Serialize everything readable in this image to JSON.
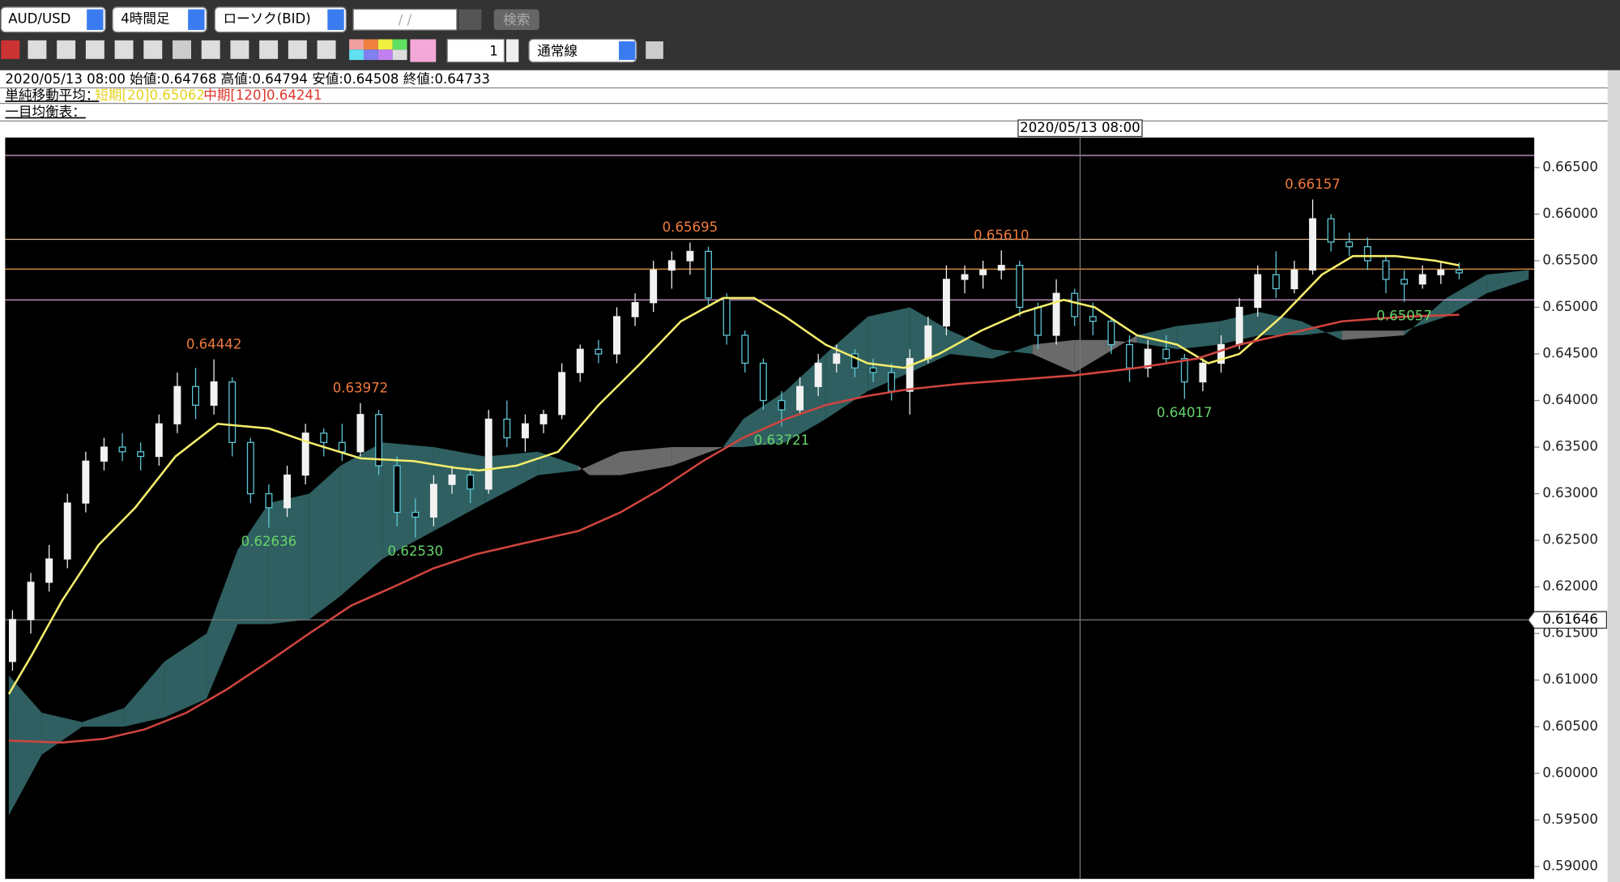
{
  "toolbar": {
    "symbol": "AUD/USD",
    "timeframe": "4時間足",
    "chart_kind": "ローソク(BID)",
    "date_input": "/ /",
    "search": "検索",
    "count": "1",
    "line_style": "通常線"
  },
  "info": {
    "ohlc_line": "2020/05/13 08:00 始値:0.64768 高値:0.64794 安値:0.64508 終値:0.64733",
    "sma_label": "単純移動平均：",
    "sma_short": "短期[20]0.65062",
    "sma_mid": "中期[120]0.64241",
    "ichimoku_label": "一目均衡表："
  },
  "chart_data": {
    "type": "candlestick",
    "xlim": [
      -0.4,
      83.1
    ],
    "ylim": [
      0.58867,
      0.66822
    ],
    "yticks": [
      {
        "value": 0.59,
        "label": "0.59000"
      },
      {
        "value": 0.595,
        "label": "0.59500"
      },
      {
        "value": 0.6,
        "label": "0.60000"
      },
      {
        "value": 0.605,
        "label": "0.60500"
      },
      {
        "value": 0.61,
        "label": "0.61000"
      },
      {
        "value": 0.615,
        "label": "0.61500"
      },
      {
        "value": 0.62,
        "label": "0.62000"
      },
      {
        "value": 0.625,
        "label": "0.62500"
      },
      {
        "value": 0.63,
        "label": "0.63000"
      },
      {
        "value": 0.635,
        "label": "0.63500"
      },
      {
        "value": 0.64,
        "label": "0.64000"
      },
      {
        "value": 0.645,
        "label": "0.64500"
      },
      {
        "value": 0.65,
        "label": "0.65000"
      },
      {
        "value": 0.655,
        "label": "0.65500"
      },
      {
        "value": 0.66,
        "label": "0.66000"
      },
      {
        "value": 0.665,
        "label": "0.66500"
      }
    ],
    "up_color": "#f2f2f2",
    "down_color": "#5ec8d8",
    "open": [
      0.612,
      0.6165,
      0.6205,
      0.623,
      0.629,
      0.6335,
      0.635,
      0.6345,
      0.634,
      0.6375,
      0.6415,
      0.6395,
      0.642,
      0.6355,
      0.63,
      0.6285,
      0.632,
      0.6365,
      0.6355,
      0.6345,
      0.6385,
      0.633,
      0.628,
      0.6275,
      0.631,
      0.632,
      0.6305,
      0.638,
      0.636,
      0.6375,
      0.6385,
      0.643,
      0.6455,
      0.645,
      0.649,
      0.6505,
      0.654,
      0.655,
      0.656,
      0.651,
      0.647,
      0.644,
      0.64,
      0.639,
      0.6415,
      0.644,
      0.645,
      0.6435,
      0.643,
      0.641,
      0.6445,
      0.648,
      0.653,
      0.6535,
      0.654,
      0.6545,
      0.65,
      0.647,
      0.6515,
      0.649,
      0.6485,
      0.646,
      0.6435,
      0.6455,
      0.6445,
      0.642,
      0.644,
      0.646,
      0.65,
      0.6535,
      0.652,
      0.654,
      0.6595,
      0.657,
      0.6565,
      0.655,
      0.653,
      0.6525,
      0.6535,
      0.654
    ],
    "high": [
      0.6175,
      0.6215,
      0.6245,
      0.63,
      0.6345,
      0.636,
      0.6365,
      0.6355,
      0.6385,
      0.643,
      0.6435,
      0.64442,
      0.6425,
      0.636,
      0.631,
      0.633,
      0.6375,
      0.637,
      0.6375,
      0.63972,
      0.639,
      0.634,
      0.6295,
      0.632,
      0.633,
      0.6325,
      0.639,
      0.64,
      0.6385,
      0.639,
      0.644,
      0.646,
      0.6465,
      0.65,
      0.6515,
      0.655,
      0.656,
      0.65695,
      0.6565,
      0.6515,
      0.6475,
      0.6445,
      0.641,
      0.6425,
      0.645,
      0.646,
      0.6455,
      0.6445,
      0.644,
      0.6455,
      0.649,
      0.6545,
      0.6545,
      0.655,
      0.6561,
      0.655,
      0.6505,
      0.653,
      0.652,
      0.6505,
      0.649,
      0.647,
      0.6465,
      0.647,
      0.645,
      0.6445,
      0.647,
      0.651,
      0.6545,
      0.656,
      0.655,
      0.66157,
      0.66,
      0.658,
      0.6575,
      0.6555,
      0.654,
      0.6545,
      0.655,
      0.6548
    ],
    "low": [
      0.611,
      0.615,
      0.6195,
      0.622,
      0.628,
      0.6325,
      0.6335,
      0.6325,
      0.633,
      0.6365,
      0.638,
      0.6385,
      0.634,
      0.629,
      0.62636,
      0.6275,
      0.631,
      0.634,
      0.6335,
      0.634,
      0.632,
      0.6265,
      0.6253,
      0.6265,
      0.63,
      0.629,
      0.63,
      0.635,
      0.6345,
      0.6365,
      0.638,
      0.642,
      0.644,
      0.644,
      0.648,
      0.6495,
      0.652,
      0.6535,
      0.65,
      0.646,
      0.643,
      0.639,
      0.63721,
      0.6385,
      0.6405,
      0.643,
      0.6425,
      0.642,
      0.64,
      0.6385,
      0.644,
      0.647,
      0.6515,
      0.652,
      0.653,
      0.649,
      0.6455,
      0.646,
      0.648,
      0.647,
      0.645,
      0.642,
      0.6425,
      0.644,
      0.64017,
      0.641,
      0.643,
      0.6455,
      0.649,
      0.651,
      0.6515,
      0.6535,
      0.656,
      0.6555,
      0.654,
      0.6515,
      0.65057,
      0.652,
      0.6525,
      0.653
    ],
    "close": [
      0.6165,
      0.6205,
      0.623,
      0.629,
      0.6335,
      0.635,
      0.6345,
      0.634,
      0.6375,
      0.6415,
      0.6395,
      0.642,
      0.6355,
      0.63,
      0.6285,
      0.632,
      0.6365,
      0.6355,
      0.6345,
      0.6385,
      0.633,
      0.628,
      0.6275,
      0.631,
      0.632,
      0.6305,
      0.638,
      0.636,
      0.6375,
      0.6385,
      0.643,
      0.6455,
      0.645,
      0.649,
      0.6505,
      0.654,
      0.655,
      0.656,
      0.651,
      0.647,
      0.644,
      0.64,
      0.639,
      0.6415,
      0.644,
      0.645,
      0.6435,
      0.643,
      0.641,
      0.6445,
      0.648,
      0.653,
      0.6535,
      0.654,
      0.6545,
      0.65,
      0.647,
      0.6515,
      0.649,
      0.6485,
      0.646,
      0.6435,
      0.6455,
      0.6445,
      0.642,
      0.644,
      0.646,
      0.65,
      0.6535,
      0.652,
      0.654,
      0.6595,
      0.657,
      0.6565,
      0.655,
      0.653,
      0.6525,
      0.6535,
      0.654,
      0.6537
    ],
    "cloud": {
      "bull_color": "#2f5f60",
      "bear_color": "#6a6a6a",
      "x": [
        -0.2,
        1.6,
        3.8,
        6.1,
        8.3,
        10.6,
        12.3,
        14,
        16.2,
        17.9,
        20.2,
        23,
        25.8,
        28.7,
        30.9,
        31.5,
        33.2,
        36,
        38.8,
        39.9,
        42.2,
        44.4,
        46.7,
        49,
        51.2,
        53.5,
        55.7,
        58,
        59.7,
        61.4,
        63.6,
        65.9,
        68.1,
        70.4,
        72.6,
        76,
        78.3,
        80.5,
        82.8
      ],
      "span_a": [
        0.6105,
        0.6065,
        0.6055,
        0.607,
        0.612,
        0.615,
        0.624,
        0.629,
        0.63,
        0.633,
        0.6355,
        0.635,
        0.634,
        0.6345,
        0.633,
        0.632,
        0.632,
        0.633,
        0.635,
        0.638,
        0.641,
        0.645,
        0.649,
        0.65,
        0.6475,
        0.6455,
        0.645,
        0.643,
        0.645,
        0.647,
        0.648,
        0.6485,
        0.6495,
        0.6485,
        0.6465,
        0.647,
        0.651,
        0.6535,
        0.654
      ],
      "span_b": [
        0.5955,
        0.602,
        0.605,
        0.605,
        0.606,
        0.608,
        0.616,
        0.616,
        0.6165,
        0.619,
        0.623,
        0.626,
        0.629,
        0.632,
        0.6325,
        0.633,
        0.6345,
        0.635,
        0.635,
        0.635,
        0.6355,
        0.638,
        0.641,
        0.643,
        0.645,
        0.6445,
        0.646,
        0.6465,
        0.6465,
        0.6462,
        0.6455,
        0.646,
        0.647,
        0.647,
        0.6475,
        0.6475,
        0.649,
        0.6515,
        0.653
      ]
    },
    "lines": [
      {
        "color": "#f4ee6c",
        "x": [
          -0.2,
          1,
          2.7,
          4.7,
          6.7,
          8.9,
          11.2,
          14,
          16.2,
          19,
          21.9,
          24.1,
          25.5,
          27.5,
          29.8,
          32,
          34.3,
          36.5,
          38.8,
          40.5,
          42.2,
          44.4,
          46.7,
          48.7,
          50.6,
          52.9,
          55.2,
          57.4,
          59.1,
          61.4,
          63.6,
          65.3,
          67,
          69.3,
          71.5,
          73.2,
          75.5,
          77.7,
          79
        ],
        "values": [
          0.6085,
          0.6125,
          0.6185,
          0.6245,
          0.6285,
          0.634,
          0.6375,
          0.637,
          0.6355,
          0.6338,
          0.6335,
          0.6328,
          0.6325,
          0.633,
          0.6345,
          0.6395,
          0.644,
          0.6485,
          0.651,
          0.651,
          0.649,
          0.646,
          0.644,
          0.6435,
          0.645,
          0.6475,
          0.6495,
          0.6508,
          0.65,
          0.647,
          0.646,
          0.644,
          0.645,
          0.649,
          0.6535,
          0.6555,
          0.6555,
          0.655,
          0.6545
        ]
      },
      {
        "color": "#d0443e",
        "x": [
          -0.2,
          2.7,
          5,
          7.2,
          9.5,
          11.7,
          14,
          16.2,
          18.5,
          20.8,
          23,
          25.3,
          27.5,
          30.9,
          33.2,
          35.4,
          37.7,
          39.9,
          42.2,
          44.4,
          46.7,
          48.9,
          51.8,
          54.6,
          58,
          61.4,
          64.7,
          67,
          70.4,
          72.6,
          76,
          79
        ],
        "values": [
          0.6035,
          0.6033,
          0.6037,
          0.6047,
          0.6065,
          0.609,
          0.612,
          0.615,
          0.618,
          0.62,
          0.622,
          0.6235,
          0.6245,
          0.626,
          0.628,
          0.6305,
          0.6335,
          0.636,
          0.638,
          0.6395,
          0.6405,
          0.6412,
          0.6418,
          0.6422,
          0.6427,
          0.6435,
          0.6445,
          0.646,
          0.6475,
          0.6485,
          0.649,
          0.6492
        ]
      }
    ],
    "hlines": [
      {
        "value": 0.6663,
        "color": "#d8a0d8"
      },
      {
        "value": 0.6573,
        "color": "#d8b890"
      },
      {
        "value": 0.6541,
        "color": "#e89a40"
      },
      {
        "value": 0.6508,
        "color": "#d8a0d8"
      }
    ],
    "crosshair": {
      "x": 58.3,
      "x_label": "2020/05/13 08:00",
      "y": {
        "value": 0.61646,
        "label": "0.61646"
      }
    },
    "annotations": [
      {
        "x": 11,
        "value": 0.64442,
        "label": "0.64442",
        "position": "above",
        "color": "#f07a3c"
      },
      {
        "x": 14,
        "value": 0.62636,
        "label": "0.62636",
        "position": "below",
        "color": "#66d36a"
      },
      {
        "x": 19,
        "value": 0.63972,
        "label": "0.63972",
        "position": "above",
        "color": "#f07a3c"
      },
      {
        "x": 22,
        "value": 0.6253,
        "label": "0.62530",
        "position": "below",
        "color": "#66d36a"
      },
      {
        "x": 37,
        "value": 0.65695,
        "label": "0.65695",
        "position": "above",
        "color": "#f07a3c"
      },
      {
        "x": 42,
        "value": 0.63721,
        "label": "0.63721",
        "position": "below",
        "color": "#66d36a"
      },
      {
        "x": 54,
        "value": 0.6561,
        "label": "0.65610",
        "position": "above",
        "color": "#f07a3c"
      },
      {
        "x": 64,
        "value": 0.64017,
        "label": "0.64017",
        "position": "below",
        "color": "#66d36a"
      },
      {
        "x": 71,
        "value": 0.66157,
        "label": "0.66157",
        "position": "above",
        "color": "#f07a3c"
      },
      {
        "x": 76,
        "value": 0.65057,
        "label": "0.65057",
        "position": "below",
        "color": "#66d36a"
      }
    ]
  }
}
